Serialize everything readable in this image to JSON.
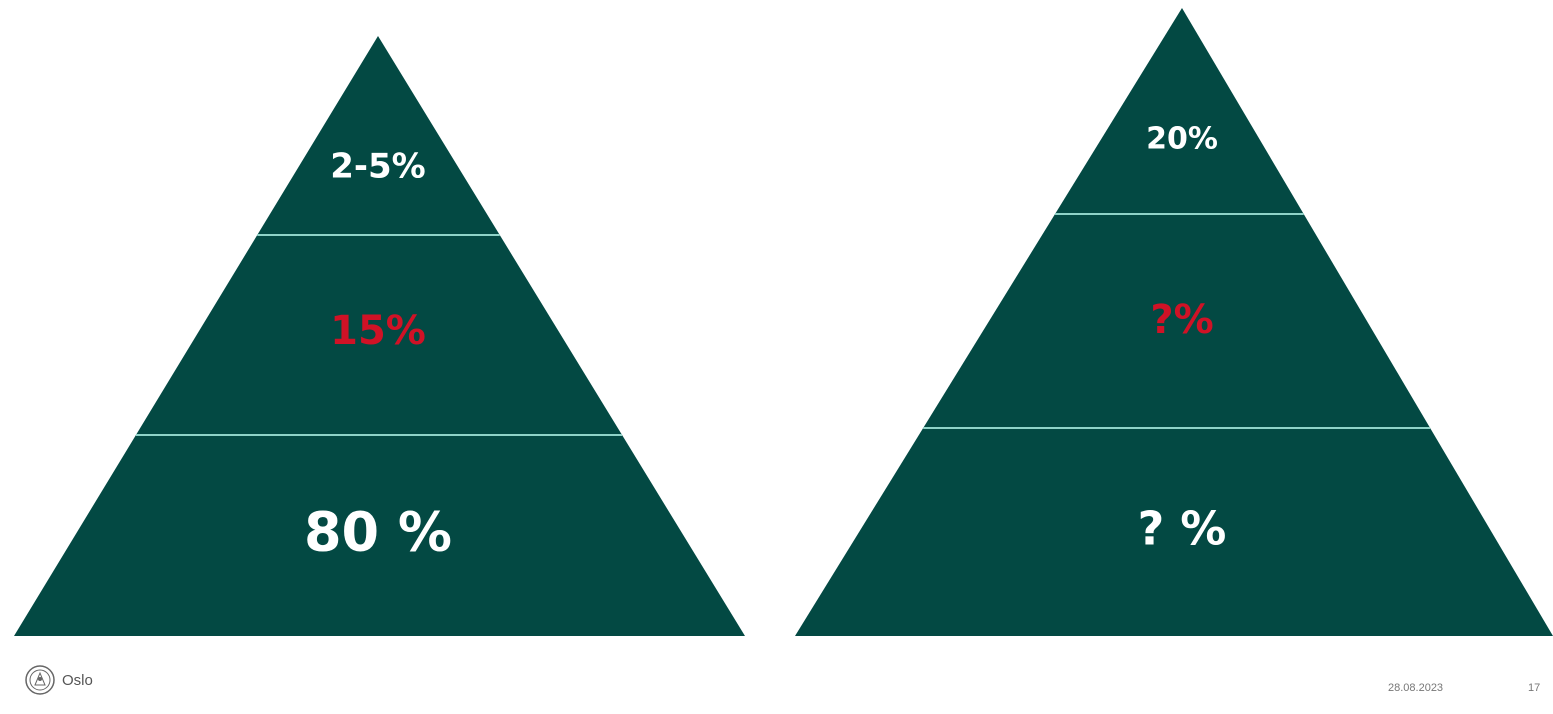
{
  "colors": {
    "pyramid_fill": "#034943",
    "divider": "#8fd3c8",
    "label_white": "#ffffff",
    "label_red": "#d01226"
  },
  "pyramids": [
    {
      "tiers": [
        {
          "label": "2-5%",
          "color": "label_white"
        },
        {
          "label": "15%",
          "color": "label_red"
        },
        {
          "label": "80 %",
          "color": "label_white"
        }
      ]
    },
    {
      "tiers": [
        {
          "label": "20%",
          "color": "label_white"
        },
        {
          "label": "?%",
          "color": "label_red"
        },
        {
          "label": "? %",
          "color": "label_white"
        }
      ]
    }
  ],
  "footer": {
    "logo_name": "Oslo",
    "logo_icon": "oslo-seal-icon",
    "date": "28.08.2023",
    "page_number": "17"
  }
}
